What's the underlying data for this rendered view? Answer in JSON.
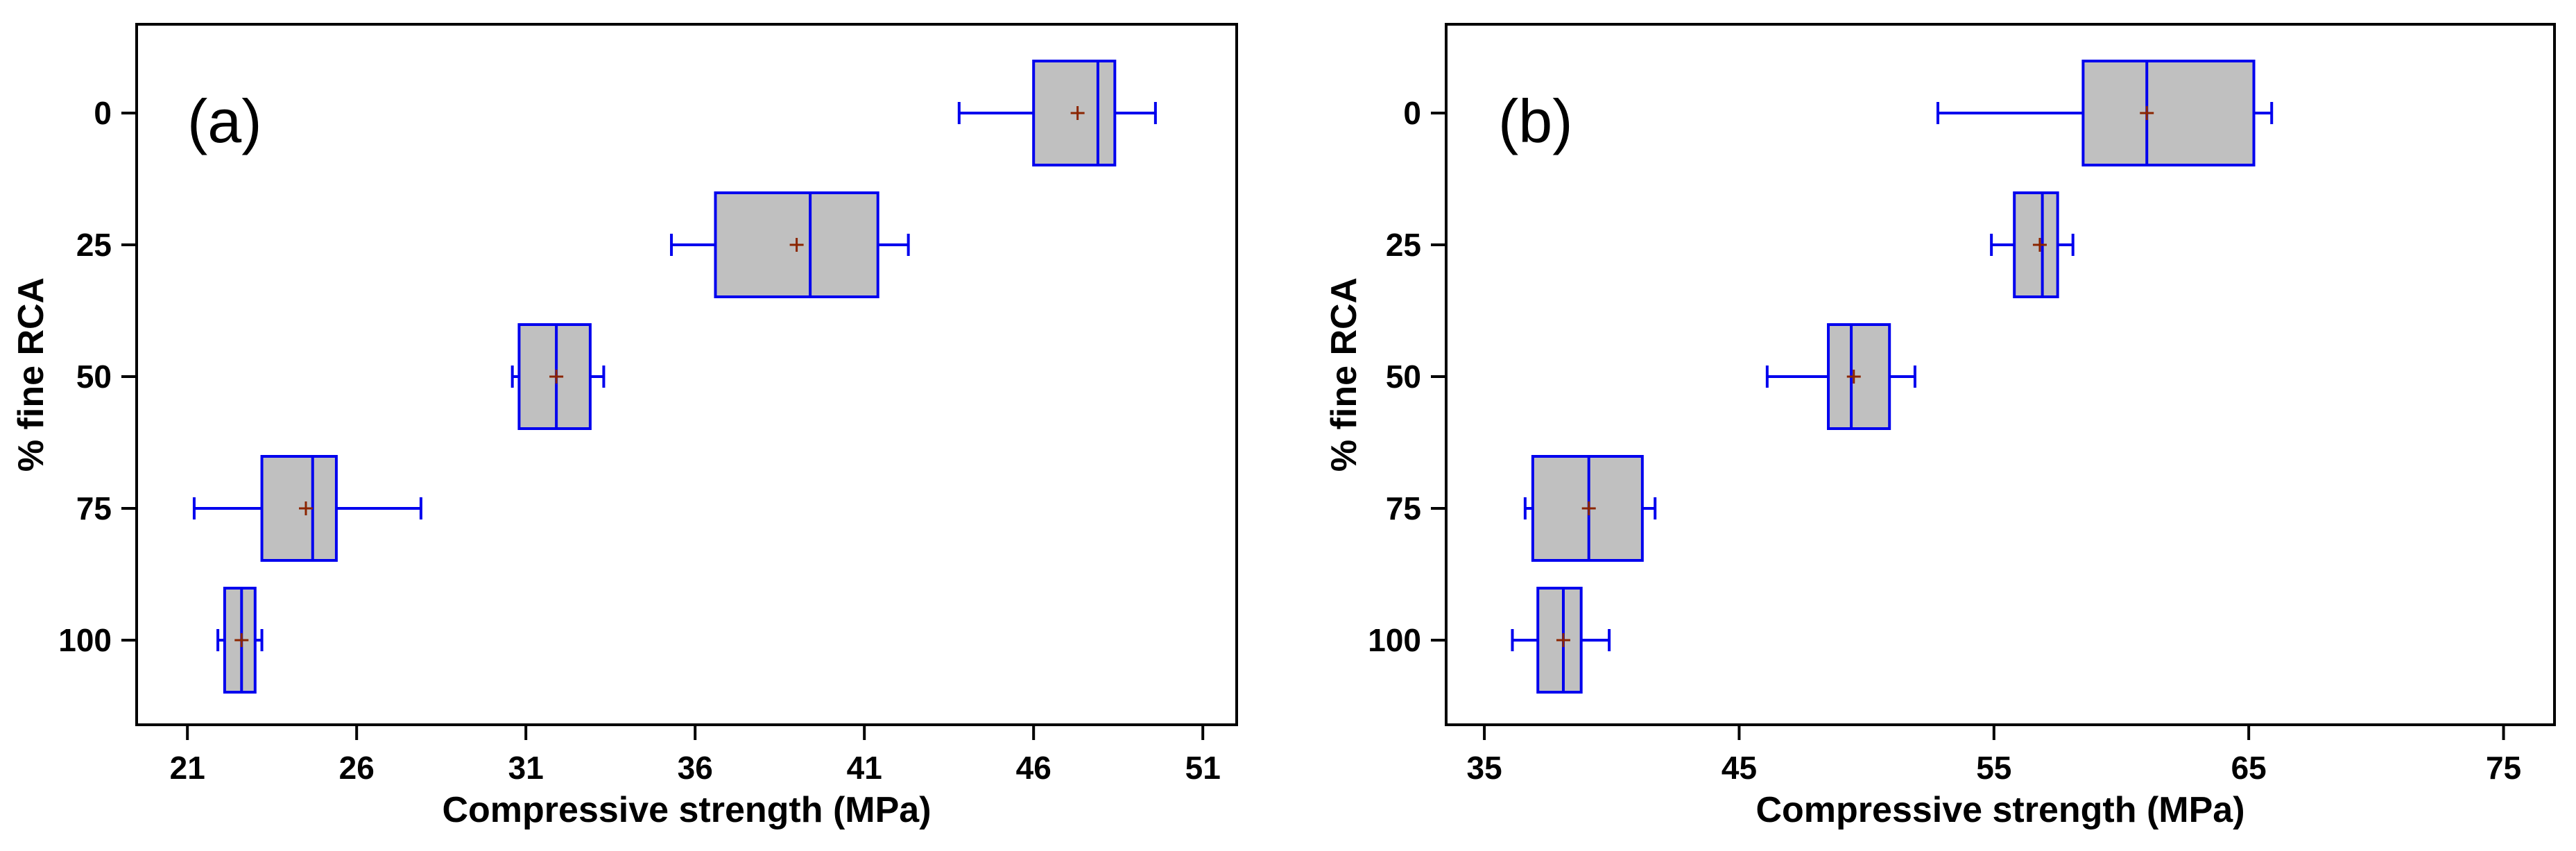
{
  "chart_data": [
    {
      "type": "boxplot",
      "panel_label": "(a)",
      "orientation": "horizontal",
      "xlabel": "Compressive strength (MPa)",
      "ylabel": "% fine RCA",
      "xlim": [
        19.5,
        52
      ],
      "xticks": [
        21,
        26,
        31,
        36,
        41,
        46,
        51
      ],
      "categories": [
        "0",
        "25",
        "50",
        "75",
        "100"
      ],
      "boxes": [
        {
          "category": "0",
          "min": 43.8,
          "q1": 46.0,
          "median": 47.9,
          "q3": 48.4,
          "max": 49.6,
          "mean": 47.3
        },
        {
          "category": "25",
          "min": 35.3,
          "q1": 36.6,
          "median": 39.4,
          "q3": 41.4,
          "max": 42.3,
          "mean": 39.0
        },
        {
          "category": "50",
          "min": 30.6,
          "q1": 30.8,
          "median": 31.9,
          "q3": 32.9,
          "max": 33.3,
          "mean": 31.9
        },
        {
          "category": "75",
          "min": 21.2,
          "q1": 23.2,
          "median": 24.7,
          "q3": 25.4,
          "max": 27.9,
          "mean": 24.5
        },
        {
          "category": "100",
          "min": 21.9,
          "q1": 22.1,
          "median": 22.6,
          "q3": 23.0,
          "max": 23.2,
          "mean": 22.6
        }
      ]
    },
    {
      "type": "boxplot",
      "panel_label": "(b)",
      "orientation": "horizontal",
      "xlabel": "Compressive strength (MPa)",
      "ylabel": "% fine RCA",
      "xlim": [
        33.5,
        77
      ],
      "xticks": [
        35,
        45,
        55,
        65,
        75
      ],
      "categories": [
        "0",
        "25",
        "50",
        "75",
        "100"
      ],
      "boxes": [
        {
          "category": "0",
          "min": 52.8,
          "q1": 58.5,
          "median": 61.0,
          "q3": 65.2,
          "max": 65.9,
          "mean": 61.0
        },
        {
          "category": "25",
          "min": 54.9,
          "q1": 55.8,
          "median": 56.9,
          "q3": 57.5,
          "max": 58.1,
          "mean": 56.8
        },
        {
          "category": "50",
          "min": 46.1,
          "q1": 48.5,
          "median": 49.4,
          "q3": 50.9,
          "max": 51.9,
          "mean": 49.5
        },
        {
          "category": "75",
          "min": 36.6,
          "q1": 36.9,
          "median": 39.1,
          "q3": 41.2,
          "max": 41.7,
          "mean": 39.1
        },
        {
          "category": "100",
          "min": 36.1,
          "q1": 37.1,
          "median": 38.1,
          "q3": 38.8,
          "max": 39.9,
          "mean": 38.1
        }
      ]
    }
  ],
  "colors": {
    "box_fill": "#c0c0c0",
    "box_stroke": "#0000ee",
    "mean_marker": "#8b2500",
    "axis": "#000000"
  }
}
